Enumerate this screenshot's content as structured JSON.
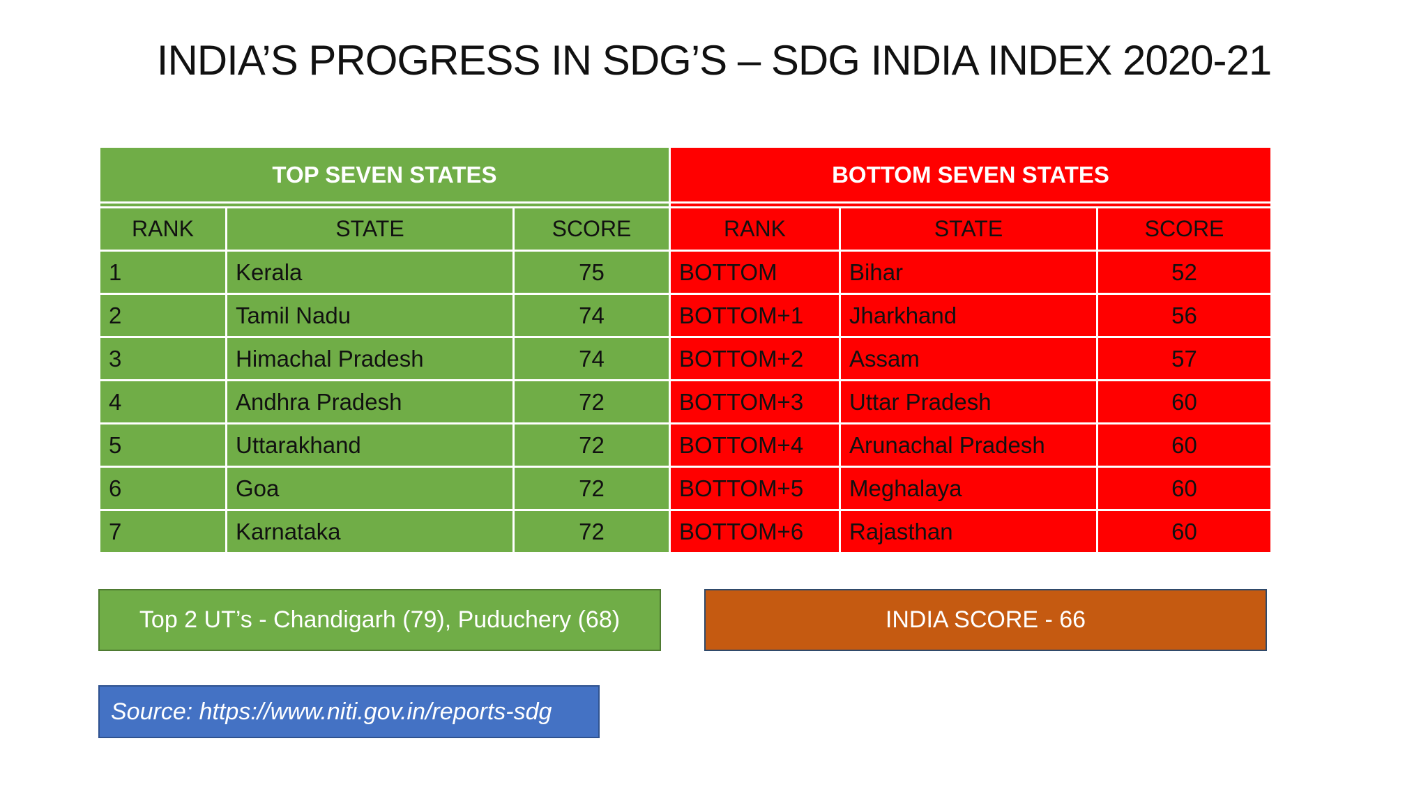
{
  "title": "INDIA’S PROGRESS IN SDG’S – SDG INDIA INDEX 2020-21",
  "top_table": {
    "heading": "TOP SEVEN STATES",
    "columns": [
      "RANK",
      "STATE",
      "SCORE"
    ],
    "rows": [
      {
        "rank": "1",
        "state": "Kerala",
        "score": "75"
      },
      {
        "rank": "2",
        "state": "Tamil Nadu",
        "score": "74"
      },
      {
        "rank": "3",
        "state": "Himachal Pradesh",
        "score": "74"
      },
      {
        "rank": "4",
        "state": "Andhra Pradesh",
        "score": "72"
      },
      {
        "rank": "5",
        "state": "Uttarakhand",
        "score": "72"
      },
      {
        "rank": "6",
        "state": "Goa",
        "score": "72"
      },
      {
        "rank": "7",
        "state": "Karnataka",
        "score": "72"
      }
    ]
  },
  "bottom_table": {
    "heading": "BOTTOM SEVEN STATES",
    "columns": [
      "RANK",
      "STATE",
      "SCORE"
    ],
    "rows": [
      {
        "rank": "BOTTOM",
        "state": "Bihar",
        "score": "52"
      },
      {
        "rank": "BOTTOM+1",
        "state": "Jharkhand",
        "score": "56"
      },
      {
        "rank": "BOTTOM+2",
        "state": "Assam",
        "score": "57"
      },
      {
        "rank": "BOTTOM+3",
        "state": "Uttar Pradesh",
        "score": "60"
      },
      {
        "rank": "BOTTOM+4",
        "state": "Arunachal Pradesh",
        "score": "60"
      },
      {
        "rank": "BOTTOM+5",
        "state": "Meghalaya",
        "score": "60"
      },
      {
        "rank": "BOTTOM+6",
        "state": "Rajasthan",
        "score": "60"
      }
    ]
  },
  "ut_note": "Top 2 UT’s  - Chandigarh (79), Puduchery (68)",
  "india_score": "INDIA SCORE - 66",
  "source": "Source: https://www.niti.gov.in/reports-sdg",
  "colors": {
    "top_green": "#70ad47",
    "bottom_red": "#ff0000",
    "india_orange": "#c55a11",
    "source_blue": "#4472c4"
  }
}
